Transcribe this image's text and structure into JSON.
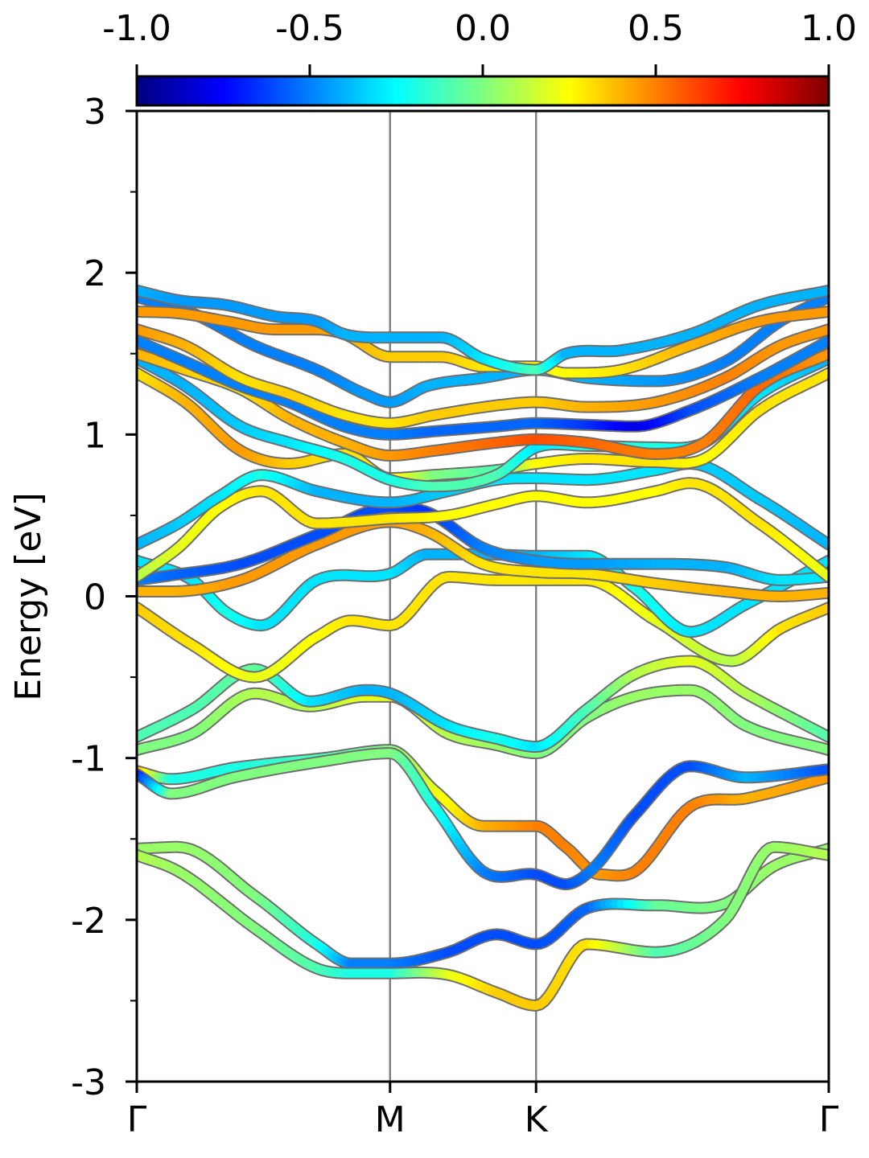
{
  "chart_data": {
    "type": "line",
    "title": "",
    "xlabel": "",
    "ylabel": "Energy [eV]",
    "ylim": [
      -3,
      3
    ],
    "xlim": [
      0,
      1
    ],
    "y_ticks": [
      {
        "value": -3,
        "label": "-3"
      },
      {
        "value": -2,
        "label": "-2"
      },
      {
        "value": -1,
        "label": "-1"
      },
      {
        "value": 0,
        "label": "0"
      },
      {
        "value": 1,
        "label": "1"
      },
      {
        "value": 2,
        "label": "2"
      },
      {
        "value": 3,
        "label": "3"
      }
    ],
    "y_minor_ticks": [
      -2.5,
      -1.5,
      -0.5,
      0.5,
      1.5,
      2.5
    ],
    "high_symmetry_points": [
      {
        "label": "Γ",
        "x": 0.0
      },
      {
        "label": "M",
        "x": 0.366
      },
      {
        "label": "K",
        "x": 0.577
      },
      {
        "label": "Γ",
        "x": 1.0
      }
    ],
    "colorbar": {
      "colormap": "jet",
      "range": [
        -1.0,
        1.0
      ],
      "ticks": [
        {
          "value": -1.0,
          "label": "-1.0"
        },
        {
          "value": -0.5,
          "label": "-0.5"
        },
        {
          "value": 0.0,
          "label": "0.0"
        },
        {
          "value": 0.5,
          "label": "0.5"
        },
        {
          "value": 1.0,
          "label": "1.0"
        }
      ]
    },
    "series": [
      {
        "x": [
          0,
          0.06,
          0.17,
          0.26,
          0.31,
          0.366,
          0.45,
          0.52,
          0.577,
          0.65,
          0.75,
          0.85,
          0.92,
          1.0
        ],
        "y": [
          -1.56,
          -1.55,
          -1.85,
          -2.15,
          -2.27,
          -2.27,
          -2.2,
          -2.09,
          -2.15,
          -1.93,
          -1.91,
          -1.9,
          -1.67,
          -1.56
        ],
        "c": [
          0.05,
          0.05,
          0.0,
          -0.2,
          -0.5,
          -0.5,
          -0.6,
          -0.6,
          -0.6,
          -0.55,
          -0.05,
          0.0,
          0.05,
          0.05
        ]
      },
      {
        "x": [
          0,
          0.06,
          0.17,
          0.26,
          0.31,
          0.366,
          0.45,
          0.52,
          0.577,
          0.65,
          0.75,
          0.85,
          0.92,
          1.0
        ],
        "y": [
          -1.6,
          -1.7,
          -2.05,
          -2.3,
          -2.33,
          -2.33,
          -2.34,
          -2.45,
          -2.53,
          -2.15,
          -2.2,
          -2.0,
          -1.55,
          -1.6
        ],
        "c": [
          0.1,
          0.05,
          0.0,
          -0.1,
          -0.2,
          -0.2,
          0.2,
          0.35,
          0.35,
          0.3,
          -0.1,
          0.0,
          0.05,
          0.1
        ]
      },
      {
        "x": [
          0,
          0.05,
          0.14,
          0.27,
          0.366,
          0.43,
          0.5,
          0.577,
          0.62,
          0.67,
          0.72,
          0.8,
          0.88,
          1.0
        ],
        "y": [
          -1.08,
          -1.13,
          -1.06,
          -1.0,
          -0.95,
          -1.2,
          -1.42,
          -1.42,
          -1.55,
          -1.72,
          -1.7,
          -1.3,
          -1.25,
          -1.12
        ],
        "c": [
          0.4,
          -0.2,
          -0.2,
          -0.1,
          0.0,
          0.2,
          0.4,
          0.5,
          0.5,
          0.45,
          0.5,
          0.5,
          0.4,
          0.45
        ]
      },
      {
        "x": [
          0,
          0.05,
          0.14,
          0.27,
          0.366,
          0.43,
          0.5,
          0.577,
          0.62,
          0.66,
          0.72,
          0.8,
          0.88,
          1.0
        ],
        "y": [
          -1.1,
          -1.22,
          -1.12,
          -1.02,
          -0.97,
          -1.3,
          -1.7,
          -1.72,
          -1.78,
          -1.68,
          -1.35,
          -1.05,
          -1.12,
          -1.07
        ],
        "c": [
          -0.7,
          0.0,
          0.0,
          0.0,
          0.0,
          -0.2,
          -0.5,
          -0.6,
          -0.6,
          -0.5,
          -0.6,
          -0.6,
          -0.4,
          -0.6
        ]
      },
      {
        "x": [
          0,
          0.08,
          0.17,
          0.25,
          0.33,
          0.366,
          0.45,
          0.52,
          0.577,
          0.65,
          0.72,
          0.8,
          0.88,
          1.0
        ],
        "y": [
          -0.95,
          -0.85,
          -0.6,
          -0.68,
          -0.62,
          -0.62,
          -0.85,
          -0.92,
          -0.97,
          -0.75,
          -0.62,
          -0.58,
          -0.8,
          -0.95
        ],
        "c": [
          0.0,
          0.0,
          0.1,
          0.1,
          0.2,
          0.2,
          0.1,
          0.05,
          0.0,
          0.0,
          0.05,
          0.05,
          0.0,
          0.0
        ]
      },
      {
        "x": [
          0,
          0.08,
          0.17,
          0.25,
          0.33,
          0.366,
          0.45,
          0.52,
          0.577,
          0.65,
          0.72,
          0.8,
          0.88,
          1.0
        ],
        "y": [
          -0.87,
          -0.7,
          -0.45,
          -0.65,
          -0.58,
          -0.6,
          -0.8,
          -0.88,
          -0.93,
          -0.7,
          -0.48,
          -0.4,
          -0.6,
          -0.87
        ],
        "c": [
          -0.1,
          -0.1,
          -0.05,
          -0.3,
          -0.4,
          -0.4,
          -0.3,
          -0.2,
          -0.3,
          -0.1,
          0.1,
          0.2,
          0.1,
          -0.1
        ]
      },
      {
        "x": [
          0,
          0.08,
          0.17,
          0.26,
          0.31,
          0.366,
          0.45,
          0.52,
          0.577,
          0.65,
          0.75,
          0.86,
          0.93,
          1.0
        ],
        "y": [
          -0.07,
          -0.3,
          -0.5,
          -0.25,
          -0.15,
          -0.18,
          0.12,
          0.1,
          0.1,
          0.1,
          -0.15,
          -0.4,
          -0.2,
          -0.07
        ],
        "c": [
          0.35,
          0.3,
          0.2,
          0.25,
          0.3,
          0.3,
          0.3,
          0.3,
          0.3,
          0.3,
          0.2,
          0.1,
          0.3,
          0.35
        ]
      },
      {
        "x": [
          0,
          0.08,
          0.13,
          0.18,
          0.26,
          0.366,
          0.42,
          0.5,
          0.577,
          0.65,
          0.72,
          0.8,
          0.88,
          1.0
        ],
        "y": [
          0.22,
          0.1,
          -0.1,
          -0.18,
          0.1,
          0.14,
          0.26,
          0.26,
          0.25,
          0.25,
          0.05,
          -0.22,
          -0.05,
          0.22
        ],
        "c": [
          -0.3,
          -0.3,
          -0.2,
          -0.3,
          -0.3,
          -0.3,
          -0.4,
          -0.4,
          -0.4,
          -0.3,
          -0.2,
          -0.3,
          -0.3,
          -0.3
        ]
      },
      {
        "x": [
          0,
          0.05,
          0.15,
          0.26,
          0.366,
          0.42,
          0.5,
          0.577,
          0.65,
          0.75,
          0.85,
          0.93,
          1.0
        ],
        "y": [
          0.03,
          0.03,
          0.1,
          0.32,
          0.46,
          0.4,
          0.2,
          0.15,
          0.14,
          0.08,
          0.03,
          0.0,
          0.02
        ],
        "c": [
          0.4,
          0.4,
          0.45,
          0.45,
          0.45,
          0.4,
          0.3,
          0.3,
          0.3,
          0.35,
          0.4,
          0.4,
          0.4
        ]
      },
      {
        "x": [
          0,
          0.05,
          0.15,
          0.26,
          0.366,
          0.42,
          0.5,
          0.577,
          0.65,
          0.75,
          0.85,
          0.93,
          1.0
        ],
        "y": [
          0.1,
          0.13,
          0.2,
          0.38,
          0.55,
          0.52,
          0.3,
          0.22,
          0.2,
          0.2,
          0.18,
          0.1,
          0.12
        ],
        "c": [
          -0.5,
          -0.55,
          -0.6,
          -0.6,
          -0.6,
          -0.65,
          -0.5,
          -0.45,
          -0.45,
          -0.4,
          -0.4,
          -0.3,
          -0.3
        ]
      },
      {
        "x": [
          0,
          0.06,
          0.12,
          0.18,
          0.26,
          0.366,
          0.45,
          0.52,
          0.577,
          0.65,
          0.75,
          0.8,
          0.9,
          1.0
        ],
        "y": [
          0.12,
          0.3,
          0.55,
          0.65,
          0.45,
          0.48,
          0.5,
          0.57,
          0.62,
          0.58,
          0.65,
          0.7,
          0.45,
          0.12
        ],
        "c": [
          0.1,
          0.2,
          0.25,
          0.3,
          0.3,
          0.3,
          0.25,
          0.25,
          0.25,
          0.25,
          0.25,
          0.3,
          0.3,
          0.2
        ]
      },
      {
        "x": [
          0,
          0.06,
          0.12,
          0.18,
          0.26,
          0.366,
          0.45,
          0.52,
          0.577,
          0.65,
          0.75,
          0.8,
          0.9,
          1.0
        ],
        "y": [
          0.32,
          0.45,
          0.62,
          0.75,
          0.65,
          0.58,
          0.65,
          0.72,
          0.73,
          0.72,
          0.78,
          0.82,
          0.6,
          0.32
        ],
        "c": [
          -0.4,
          -0.35,
          -0.3,
          -0.2,
          -0.4,
          -0.4,
          -0.35,
          -0.3,
          -0.3,
          -0.3,
          -0.3,
          -0.35,
          -0.35,
          -0.4
        ]
      },
      {
        "x": [
          0,
          0.07,
          0.15,
          0.22,
          0.3,
          0.366,
          0.43,
          0.52,
          0.577,
          0.65,
          0.75,
          0.82,
          0.9,
          1.0
        ],
        "y": [
          1.38,
          1.2,
          0.9,
          0.82,
          0.88,
          0.73,
          0.75,
          0.78,
          0.82,
          0.85,
          0.83,
          0.85,
          1.15,
          1.38
        ],
        "c": [
          0.3,
          0.4,
          0.45,
          0.35,
          0.3,
          0.3,
          0.0,
          -0.1,
          0.25,
          0.3,
          0.3,
          0.25,
          0.3,
          0.3
        ]
      },
      {
        "x": [
          0,
          0.07,
          0.15,
          0.22,
          0.3,
          0.366,
          0.43,
          0.52,
          0.577,
          0.65,
          0.75,
          0.82,
          0.9,
          1.0
        ],
        "y": [
          1.47,
          1.3,
          1.05,
          0.95,
          0.85,
          0.72,
          0.68,
          0.75,
          0.92,
          0.93,
          0.92,
          0.95,
          1.25,
          1.47
        ],
        "c": [
          -0.4,
          -0.4,
          -0.35,
          -0.3,
          -0.2,
          -0.2,
          -0.1,
          -0.1,
          -0.3,
          -0.2,
          -0.2,
          -0.3,
          -0.3,
          -0.4
        ]
      },
      {
        "x": [
          0,
          0.07,
          0.15,
          0.22,
          0.3,
          0.366,
          0.43,
          0.52,
          0.577,
          0.65,
          0.75,
          0.82,
          0.9,
          1.0
        ],
        "y": [
          1.5,
          1.4,
          1.28,
          1.1,
          0.95,
          0.87,
          0.9,
          0.95,
          0.97,
          0.95,
          0.88,
          0.95,
          1.3,
          1.5
        ],
        "c": [
          0.4,
          0.35,
          0.3,
          0.4,
          0.4,
          0.45,
          0.5,
          0.55,
          0.6,
          0.55,
          0.5,
          0.5,
          0.55,
          0.45
        ]
      },
      {
        "x": [
          0,
          0.07,
          0.15,
          0.22,
          0.3,
          0.366,
          0.43,
          0.52,
          0.577,
          0.65,
          0.72,
          0.8,
          0.9,
          1.0
        ],
        "y": [
          1.58,
          1.45,
          1.3,
          1.2,
          1.05,
          1.0,
          1.02,
          1.05,
          1.07,
          1.06,
          1.05,
          1.15,
          1.35,
          1.58
        ],
        "c": [
          -0.5,
          -0.5,
          -0.5,
          -0.5,
          -0.5,
          -0.5,
          -0.55,
          -0.55,
          -0.55,
          -0.65,
          -0.8,
          -0.6,
          -0.5,
          -0.5
        ]
      },
      {
        "x": [
          0,
          0.07,
          0.15,
          0.22,
          0.3,
          0.366,
          0.43,
          0.52,
          0.577,
          0.65,
          0.75,
          0.85,
          0.93,
          1.0
        ],
        "y": [
          1.65,
          1.55,
          1.35,
          1.25,
          1.12,
          1.07,
          1.12,
          1.18,
          1.2,
          1.17,
          1.2,
          1.35,
          1.55,
          1.65
        ],
        "c": [
          0.45,
          0.4,
          0.3,
          0.35,
          0.3,
          0.3,
          0.35,
          0.35,
          0.35,
          0.4,
          0.45,
          0.5,
          0.45,
          0.45
        ]
      },
      {
        "x": [
          0,
          0.08,
          0.17,
          0.26,
          0.33,
          0.366,
          0.42,
          0.5,
          0.577,
          0.65,
          0.75,
          0.85,
          0.93,
          1.0
        ],
        "y": [
          1.85,
          1.75,
          1.55,
          1.4,
          1.25,
          1.2,
          1.3,
          1.35,
          1.4,
          1.35,
          1.33,
          1.45,
          1.7,
          1.85
        ],
        "c": [
          -0.5,
          -0.5,
          -0.5,
          -0.5,
          -0.45,
          -0.45,
          -0.4,
          -0.4,
          -0.4,
          -0.4,
          -0.45,
          -0.5,
          -0.5,
          -0.5
        ]
      },
      {
        "x": [
          0,
          0.06,
          0.13,
          0.2,
          0.26,
          0.3,
          0.366,
          0.44,
          0.5,
          0.577,
          0.62,
          0.7,
          0.8,
          0.9,
          1.0
        ],
        "y": [
          1.76,
          1.75,
          1.7,
          1.65,
          1.65,
          1.62,
          1.48,
          1.48,
          1.42,
          1.42,
          1.38,
          1.4,
          1.55,
          1.7,
          1.76
        ],
        "c": [
          0.45,
          0.45,
          0.45,
          0.45,
          0.45,
          0.4,
          0.35,
          0.35,
          0.3,
          0.25,
          0.25,
          0.3,
          0.4,
          0.45,
          0.45
        ]
      },
      {
        "x": [
          0,
          0.06,
          0.13,
          0.2,
          0.26,
          0.3,
          0.366,
          0.44,
          0.5,
          0.577,
          0.62,
          0.7,
          0.8,
          0.9,
          1.0
        ],
        "y": [
          1.89,
          1.83,
          1.8,
          1.73,
          1.7,
          1.62,
          1.6,
          1.6,
          1.47,
          1.4,
          1.5,
          1.52,
          1.62,
          1.8,
          1.89
        ],
        "c": [
          -0.4,
          -0.45,
          -0.45,
          -0.45,
          -0.45,
          -0.4,
          -0.4,
          -0.4,
          -0.3,
          -0.1,
          -0.4,
          -0.4,
          -0.4,
          -0.4,
          -0.4
        ]
      }
    ]
  }
}
